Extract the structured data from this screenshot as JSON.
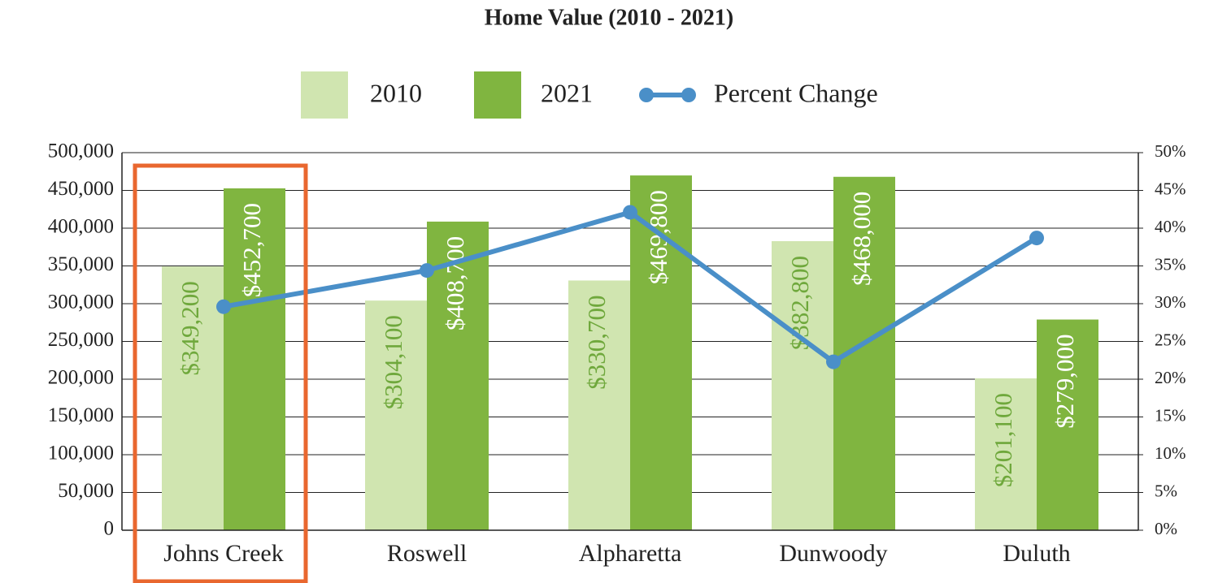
{
  "chart_data": {
    "type": "bar",
    "title": "Home Value (2010 - 2021)",
    "categories": [
      "Johns Creek",
      "Roswell",
      "Alpharetta",
      "Dunwoody",
      "Duluth"
    ],
    "series": [
      {
        "name": "2010",
        "type": "bar",
        "color": "#d0e5b0",
        "label_color": "#6fa83c",
        "values": [
          349200,
          304100,
          330700,
          382800,
          201100
        ],
        "value_labels": [
          "$349,200",
          "$304,100",
          "$330,700",
          "$382,800",
          "$201,100"
        ]
      },
      {
        "name": "2021",
        "type": "bar",
        "color": "#80b540",
        "label_color": "#ffffff",
        "values": [
          452700,
          408700,
          469800,
          468000,
          279000
        ],
        "value_labels": [
          "$452,700",
          "$408,700",
          "$469,800",
          "$468,000",
          "$279,000"
        ]
      },
      {
        "name": "Percent Change",
        "type": "line",
        "axis": "y2",
        "color": "#4a8fc8",
        "values": [
          29.6,
          34.4,
          42.1,
          22.3,
          38.7
        ]
      }
    ],
    "ylim": [
      0,
      500000
    ],
    "yticks": [
      0,
      {
        "value": 50000,
        "label": "50,000"
      },
      {
        "value": 100000,
        "label": "100,000"
      },
      {
        "value": 150000,
        "label": "150,000"
      },
      {
        "value": 200000,
        "label": "200,000"
      },
      {
        "value": 250000,
        "label": "250,000"
      },
      {
        "value": 300000,
        "label": "300,000"
      },
      {
        "value": 350000,
        "label": "350,000"
      },
      {
        "value": 400000,
        "label": "400,000"
      },
      {
        "value": 450000,
        "label": "450,000"
      },
      {
        "value": 500000,
        "label": "500,000"
      }
    ],
    "y2lim": [
      0,
      50
    ],
    "y2ticks": [
      {
        "value": 0,
        "label": "0%"
      },
      {
        "value": 5,
        "label": "5%"
      },
      {
        "value": 10,
        "label": "10%"
      },
      {
        "value": 15,
        "label": "15%"
      },
      {
        "value": 20,
        "label": "20%"
      },
      {
        "value": 25,
        "label": "25%"
      },
      {
        "value": 30,
        "label": "30%"
      },
      {
        "value": 35,
        "label": "35%"
      },
      {
        "value": 40,
        "label": "40%"
      },
      {
        "value": 45,
        "label": "45%"
      },
      {
        "value": 50,
        "label": "50%"
      }
    ],
    "grid": true,
    "legend": "top"
  }
}
